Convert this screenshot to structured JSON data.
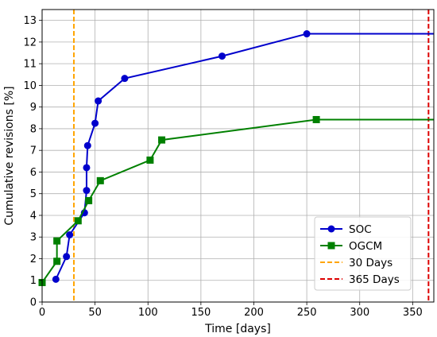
{
  "chart_data": {
    "type": "line",
    "xlabel": "Time [days]",
    "ylabel": "Cumulative revisions [%]",
    "xlim": [
      0,
      370
    ],
    "ylim": [
      0,
      13.5
    ],
    "xticks": [
      0,
      50,
      100,
      150,
      200,
      250,
      300,
      350
    ],
    "yticks": [
      0,
      1,
      2,
      3,
      4,
      5,
      6,
      7,
      8,
      9,
      10,
      11,
      12,
      13
    ],
    "grid": true,
    "legend_position": "lower-right",
    "series": [
      {
        "name": "SOC",
        "color": "#0000cc",
        "marker": "circle",
        "x": [
          13,
          23,
          26,
          40,
          42,
          42,
          43,
          50,
          53,
          78,
          170,
          250,
          370
        ],
        "y": [
          1.05,
          2.1,
          3.1,
          4.12,
          5.15,
          6.2,
          7.22,
          8.25,
          9.28,
          10.32,
          11.35,
          12.38,
          12.38
        ],
        "marker_count": 12
      },
      {
        "name": "OGCM",
        "color": "#008000",
        "marker": "square",
        "x": [
          0,
          14,
          14,
          34,
          44,
          55,
          102,
          113,
          259,
          370
        ],
        "y": [
          0.9,
          1.88,
          2.82,
          3.75,
          4.68,
          5.6,
          6.55,
          7.48,
          8.42,
          8.42
        ],
        "marker_count": 9
      }
    ],
    "vlines": [
      {
        "name": "30 Days",
        "x": 30,
        "color": "#ffa500",
        "style": "dashed"
      },
      {
        "name": "365 Days",
        "x": 365,
        "color": "#dd0000",
        "style": "dashed"
      }
    ]
  }
}
